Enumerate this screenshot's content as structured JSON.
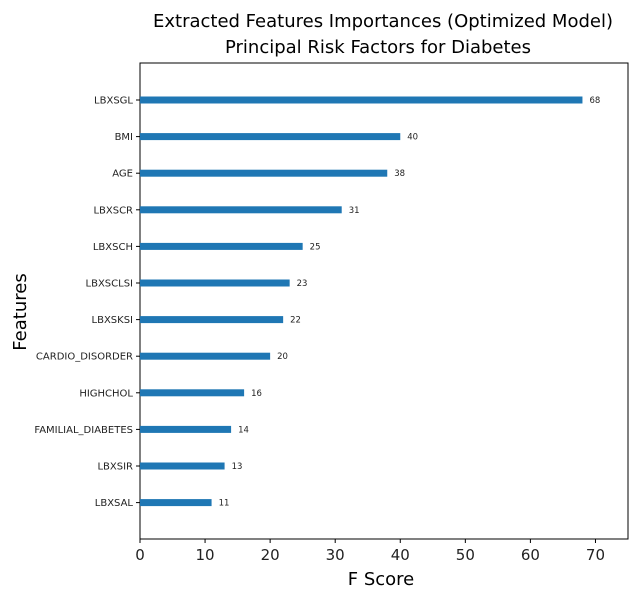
{
  "chart_data": {
    "type": "bar",
    "orientation": "horizontal",
    "title": "Extracted Features Importances (Optimized Model)",
    "subtitle": "Principal Risk Factors for Diabetes",
    "xlabel": "F Score",
    "ylabel": "Features",
    "xlim": [
      0,
      75
    ],
    "xticks": [
      0,
      10,
      20,
      30,
      40,
      50,
      60,
      70
    ],
    "grid": false,
    "bar_color": "#1f77b4",
    "categories": [
      "LBXSGL",
      "BMI",
      "AGE",
      "LBXSCR",
      "LBXSCH",
      "LBXSCLSI",
      "LBXSKSI",
      "CARDIO_DISORDER",
      "HIGHCHOL",
      "FAMILIAL_DIABETES",
      "LBXSIR",
      "LBXSAL"
    ],
    "values": [
      68,
      40,
      38,
      31,
      25,
      23,
      22,
      20,
      16,
      14,
      13,
      11
    ]
  }
}
